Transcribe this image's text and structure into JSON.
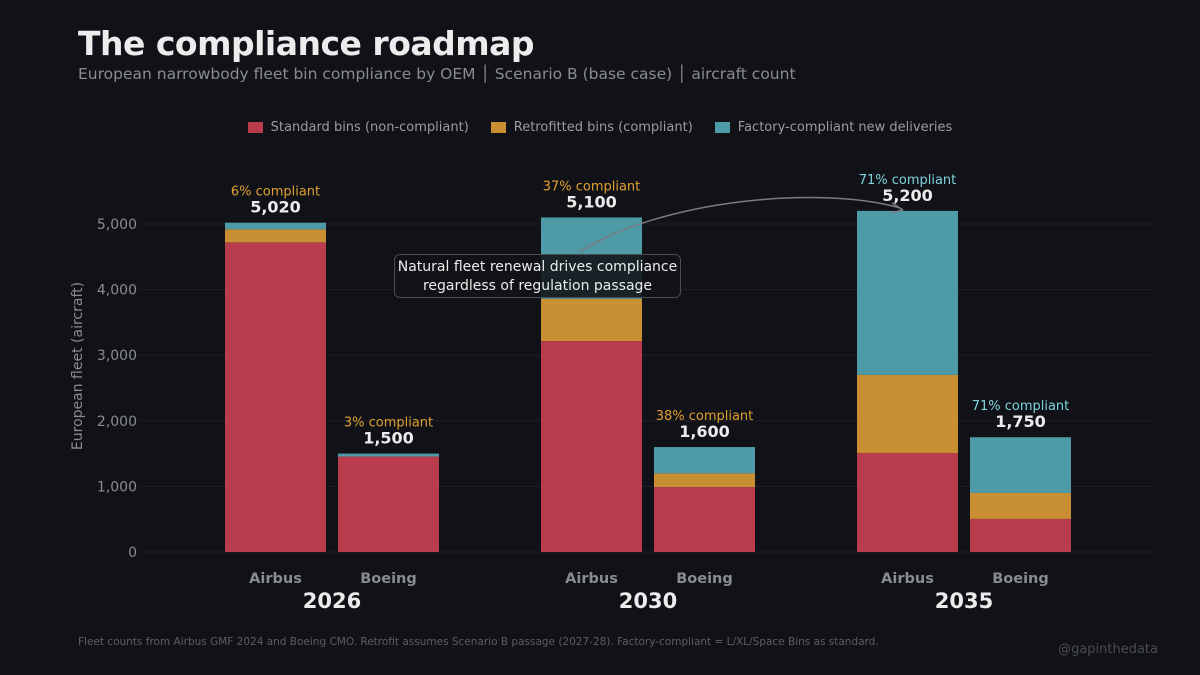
{
  "title": "The compliance roadmap",
  "subtitle": "European narrowbody fleet bin compliance by OEM  │  Scenario B (base case)  │  aircraft count",
  "footer": "Fleet counts from Airbus GMF 2024 and Boeing CMO. Retrofit assumes Scenario B passage (2027-28). Factory-compliant = L/XL/Space Bins as standard.",
  "handle": "@gapinthedata",
  "annotation": "Natural fleet renewal drives compliance regardless of regulation passage",
  "chart_data": {
    "type": "bar",
    "stacked": true,
    "ylabel": "European fleet (aircraft)",
    "ylim": [
      0,
      5500
    ],
    "yticks": [
      0,
      1000,
      2000,
      3000,
      4000,
      5000
    ],
    "ytick_labels": [
      "0",
      "1,000",
      "2,000",
      "3,000",
      "4,000",
      "5,000"
    ],
    "grid": true,
    "legend_position": "top-center",
    "groups": [
      {
        "year": "2026",
        "bars": [
          {
            "oem": "Airbus",
            "total_label": "5,020",
            "compliance_label": "6% compliant",
            "values": [
              4720,
              200,
              100
            ]
          },
          {
            "oem": "Boeing",
            "total_label": "1,500",
            "compliance_label": "3% compliant",
            "values": [
              1455,
              0,
              45
            ]
          }
        ]
      },
      {
        "year": "2030",
        "bars": [
          {
            "oem": "Airbus",
            "total_label": "5,100",
            "compliance_label": "37% compliant",
            "values": [
              3215,
              645,
              1240
            ]
          },
          {
            "oem": "Boeing",
            "total_label": "1,600",
            "compliance_label": "38% compliant",
            "values": [
              990,
              210,
              400
            ]
          }
        ]
      },
      {
        "year": "2035",
        "bars": [
          {
            "oem": "Airbus",
            "total_label": "5,200",
            "compliance_label": "71% compliant",
            "values": [
              1510,
              1190,
              2500
            ]
          },
          {
            "oem": "Boeing",
            "total_label": "1,750",
            "compliance_label": "71% compliant",
            "values": [
              505,
              395,
              850
            ]
          }
        ]
      }
    ],
    "series": [
      {
        "name": "Standard bins (non-compliant)",
        "color": "#b83c4b"
      },
      {
        "name": "Retrofitted bins (compliant)",
        "color": "#c89032"
      },
      {
        "name": "Factory-compliant new deliveries",
        "color": "#4e9aa6"
      }
    ],
    "label_colors": {
      "low": "#e0a030",
      "high": "#7fd3dc"
    }
  }
}
